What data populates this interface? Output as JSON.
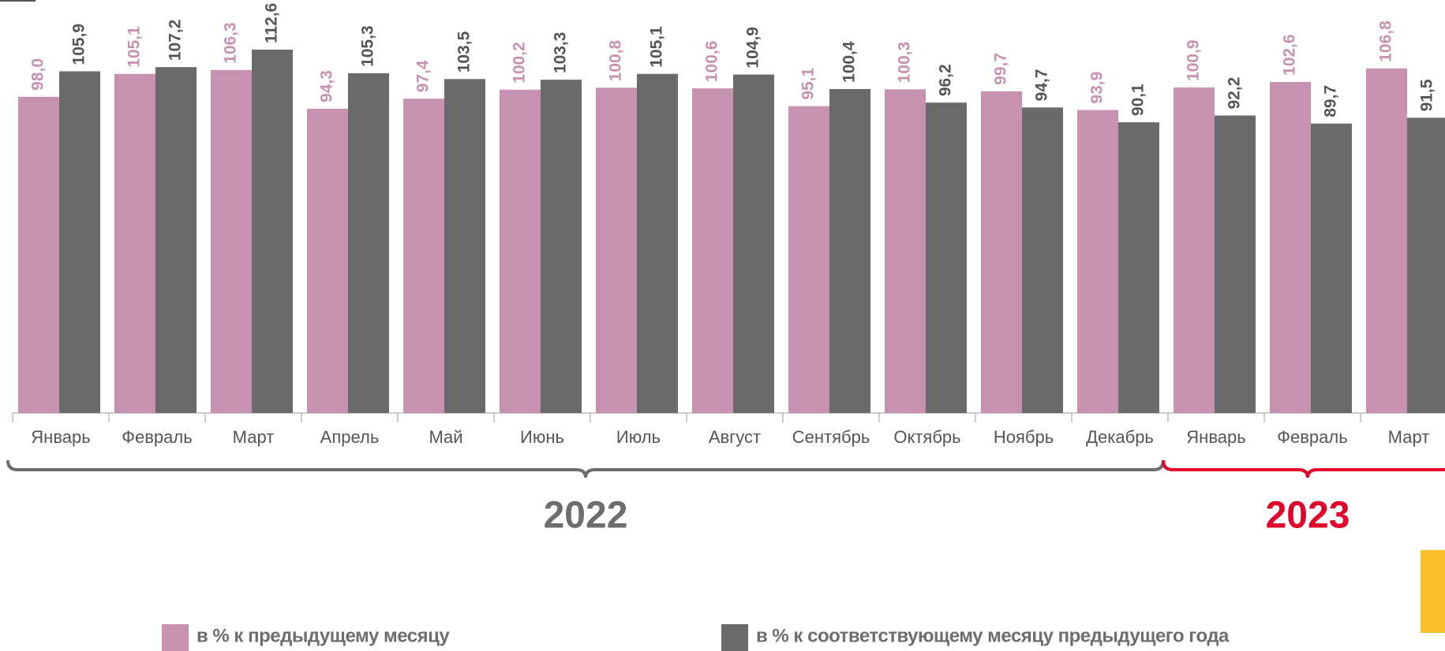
{
  "chart_data": {
    "type": "bar",
    "categories": [
      "Январь",
      "Февраль",
      "Март",
      "Апрель",
      "Май",
      "Июнь",
      "Июль",
      "Август",
      "Сентябрь",
      "Октябрь",
      "Ноябрь",
      "Декабрь",
      "Январь",
      "Февраль",
      "Март"
    ],
    "series": [
      {
        "name": "в % к предыдущему месяцу",
        "color": "#c791b1",
        "values": [
          98.0,
          105.1,
          106.3,
          94.3,
          97.4,
          100.2,
          100.8,
          100.6,
          95.1,
          100.3,
          99.7,
          93.9,
          100.9,
          102.6,
          106.8
        ],
        "value_labels": [
          "98,0",
          "105,1",
          "106,3",
          "94,3",
          "97,4",
          "100,2",
          "100,8",
          "100,6",
          "95,1",
          "100,3",
          "99,7",
          "93,9",
          "100,9",
          "102,6",
          "106,8"
        ]
      },
      {
        "name": "в % к соответствующему месяцу предыдущего года",
        "color": "#6a6a6a",
        "values": [
          105.9,
          107.2,
          112.6,
          105.3,
          103.5,
          103.3,
          105.1,
          104.9,
          100.4,
          96.2,
          94.7,
          90.1,
          92.2,
          89.7,
          91.5
        ],
        "value_labels": [
          "105,9",
          "107,2",
          "112,6",
          "105,3",
          "103,5",
          "103,3",
          "105,1",
          "104,9",
          "100,4",
          "96,2",
          "94,7",
          "90,1",
          "92,2",
          "89,7",
          "91,5"
        ]
      }
    ],
    "ylim": [
      0,
      128
    ],
    "groups": [
      {
        "label": "2022",
        "start": 0,
        "end": 11,
        "color": "#6d6d6d"
      },
      {
        "label": "2023",
        "start": 12,
        "end": 14,
        "color": "#e0002a"
      }
    ]
  }
}
